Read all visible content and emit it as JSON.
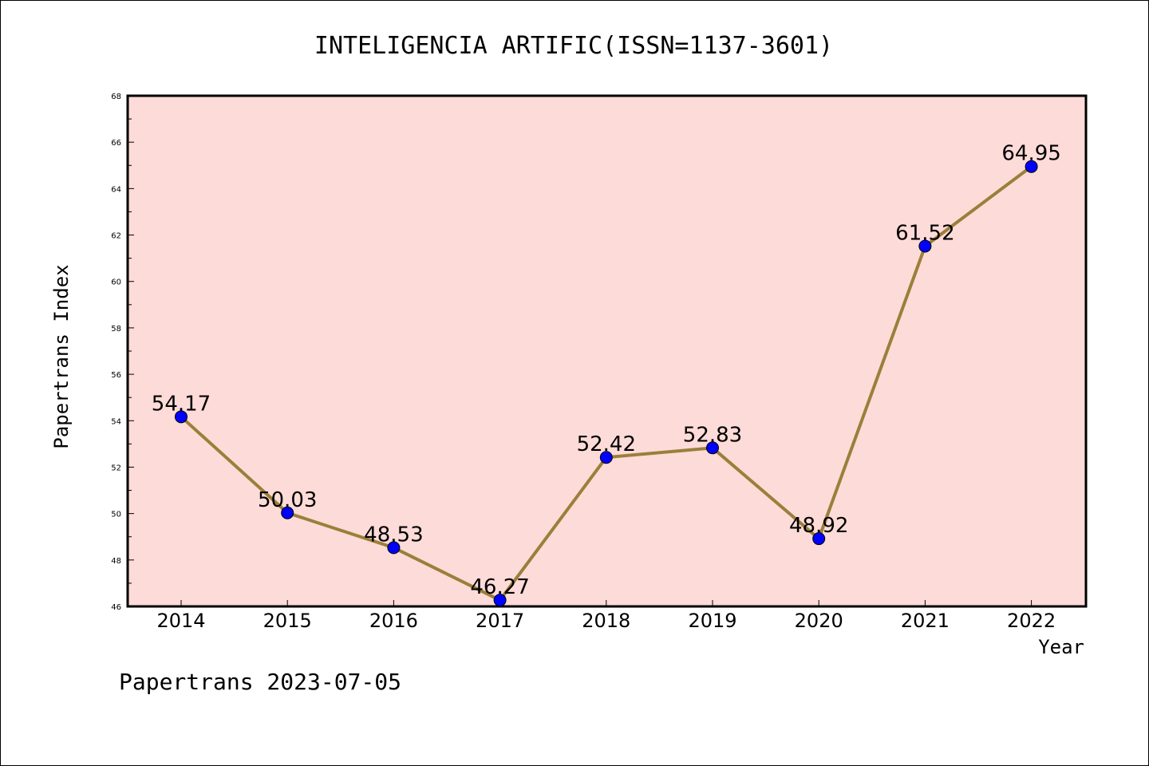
{
  "chart_data": {
    "type": "line",
    "title": "INTELIGENCIA ARTIFIC(ISSN=1137-3601)",
    "xlabel": "Year",
    "ylabel": "Papertrans Index",
    "categories": [
      "2014",
      "2015",
      "2016",
      "2017",
      "2018",
      "2019",
      "2020",
      "2021",
      "2022"
    ],
    "series": [
      {
        "values": [
          54.17,
          50.03,
          48.53,
          46.27,
          52.42,
          52.83,
          48.92,
          61.52,
          64.95
        ],
        "labels": [
          "54.17",
          "50.03",
          "48.53",
          "46.27",
          "52.42",
          "52.83",
          "48.92",
          "61.52",
          "64.95"
        ]
      }
    ],
    "ylim": [
      46,
      68
    ],
    "yticks": [
      "46",
      "48",
      "50",
      "52",
      "54",
      "56",
      "58",
      "60",
      "62",
      "64",
      "66",
      "68"
    ],
    "grid": false,
    "legend": "none",
    "colors": {
      "plot_background": "#fddbd8",
      "line": "#9b7f3a",
      "marker": "#0000ff",
      "frame": "#000000"
    }
  },
  "footer": "Papertrans 2023-07-05"
}
